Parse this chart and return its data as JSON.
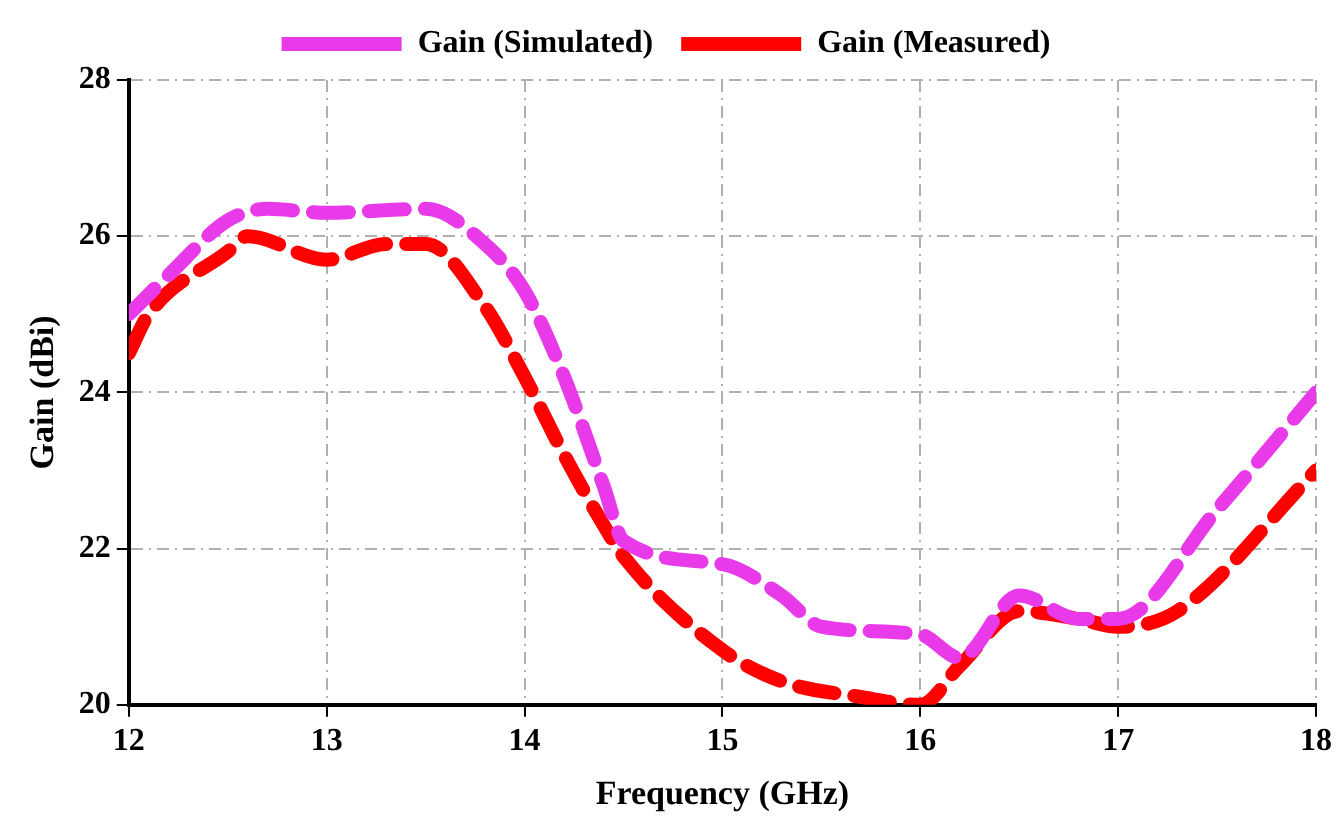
{
  "chart_data": {
    "type": "line",
    "xlabel": "Frequency (GHz)",
    "ylabel": "Gain (dBi)",
    "xlim": [
      12,
      18
    ],
    "xticks": [
      12,
      13,
      14,
      15,
      16,
      17,
      18
    ],
    "ylim": [
      20,
      28
    ],
    "yticks": [
      20,
      22,
      24,
      26,
      28
    ],
    "grid": true,
    "legend": "top",
    "marker": "none",
    "line_style": "dashed",
    "series": [
      {
        "name": "Gain (Simulated)",
        "color": "#e83ae8",
        "x": [
          12,
          12.2,
          12.5,
          12.7,
          13,
          13.5,
          13.8,
          14,
          14.2,
          14.4,
          14.5,
          15,
          15.3,
          15.5,
          16,
          16.2,
          16.5,
          16.8,
          17,
          17.5,
          18
        ],
        "values": [
          25.0,
          25.5,
          26.2,
          26.35,
          26.3,
          26.35,
          25.9,
          25.3,
          24.2,
          22.8,
          22.1,
          21.8,
          21.4,
          21.0,
          20.9,
          20.6,
          21.4,
          21.1,
          21.1,
          22.5,
          24.0
        ]
      },
      {
        "name": "Gain (Measured)",
        "color": "#ff0000",
        "x": [
          12,
          12.1,
          12.5,
          12.6,
          13,
          13.3,
          13.5,
          13.8,
          14,
          14.2,
          14.4,
          14.5,
          15,
          15.3,
          15.7,
          16,
          16.2,
          16.5,
          16.8,
          17,
          17.3,
          18
        ],
        "values": [
          24.5,
          25.0,
          25.8,
          26.0,
          25.7,
          25.9,
          25.9,
          25.1,
          24.2,
          23.2,
          22.3,
          21.9,
          20.7,
          20.3,
          20.1,
          20.0,
          20.5,
          21.2,
          21.1,
          21.0,
          21.2,
          23.0
        ]
      }
    ]
  }
}
